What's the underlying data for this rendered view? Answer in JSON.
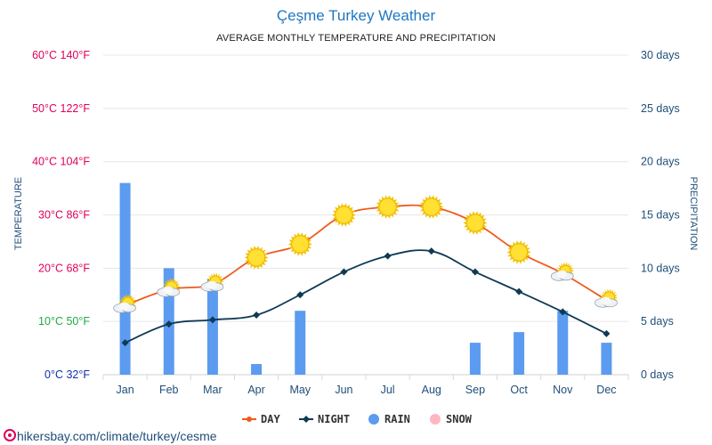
{
  "title": "Çeşme Turkey Weather",
  "subtitle": "AVERAGE MONTHLY TEMPERATURE AND PRECIPITATION",
  "left_axis_label": "TEMPERATURE",
  "right_axis_label": "PRECIPITATION",
  "source": "hikersbay.com/climate/turkey/cesme",
  "colors": {
    "day": "#f05a1c",
    "night": "#0f3a55",
    "rain": "#5b9bf0",
    "snow": "#ffb6c1",
    "temp_hot": "#e0005a",
    "temp_mild": "#22a845",
    "temp_cold": "#1030b0",
    "days_label": "#1f4e79",
    "title": "#1f77c2"
  },
  "legend": [
    {
      "key": "day",
      "label": "DAY",
      "icon": "line-marker-dot"
    },
    {
      "key": "night",
      "label": "NIGHT",
      "icon": "line-marker-diamond"
    },
    {
      "key": "rain",
      "label": "RAIN",
      "icon": "circle"
    },
    {
      "key": "snow",
      "label": "SNOW",
      "icon": "circle"
    }
  ],
  "chart_data": {
    "type": "line",
    "title": "Çeşme Turkey Weather",
    "subtitle": "AVERAGE MONTHLY TEMPERATURE AND PRECIPITATION",
    "categories": [
      "Jan",
      "Feb",
      "Mar",
      "Apr",
      "May",
      "Jun",
      "Jul",
      "Aug",
      "Sep",
      "Oct",
      "Nov",
      "Dec"
    ],
    "y_left": {
      "label": "TEMPERATURE",
      "range": [
        0,
        60
      ],
      "ticks": [
        {
          "value": 0,
          "label": "0°C 32°F"
        },
        {
          "value": 10,
          "label": "10°C 50°F"
        },
        {
          "value": 20,
          "label": "20°C 68°F"
        },
        {
          "value": 30,
          "label": "30°C 86°F"
        },
        {
          "value": 40,
          "label": "40°C 104°F"
        },
        {
          "value": 50,
          "label": "50°C 122°F"
        },
        {
          "value": 60,
          "label": "60°C 140°F"
        }
      ]
    },
    "y_right": {
      "label": "PRECIPITATION",
      "range": [
        0,
        30
      ],
      "ticks": [
        {
          "value": 0,
          "label": "0 days"
        },
        {
          "value": 5,
          "label": "5 days"
        },
        {
          "value": 10,
          "label": "10 days"
        },
        {
          "value": 15,
          "label": "15 days"
        },
        {
          "value": 20,
          "label": "20 days"
        },
        {
          "value": 25,
          "label": "25 days"
        },
        {
          "value": 30,
          "label": "30 days"
        }
      ]
    },
    "series": [
      {
        "name": "DAY",
        "axis": "left",
        "kind": "line",
        "values": [
          13,
          16,
          17,
          22,
          24.5,
          30,
          31.5,
          31.5,
          28.5,
          23,
          19,
          14
        ],
        "weather_icons": [
          "cloudy-sun-icon",
          "cloudy-sun-icon",
          "cloudy-sun-icon",
          "sun-icon",
          "sun-icon",
          "sun-icon",
          "sun-icon",
          "sun-icon",
          "sun-icon",
          "sun-icon",
          "cloudy-sun-icon",
          "cloudy-sun-icon"
        ]
      },
      {
        "name": "NIGHT",
        "axis": "left",
        "kind": "line",
        "values": [
          6,
          9.5,
          10.3,
          11.2,
          15,
          19.3,
          22.3,
          23.2,
          19.3,
          15.6,
          11.8,
          7.7
        ]
      },
      {
        "name": "RAIN",
        "axis": "right",
        "kind": "bar",
        "values": [
          18,
          10,
          9,
          1,
          6,
          0,
          0,
          0,
          3,
          4,
          6,
          3
        ]
      },
      {
        "name": "SNOW",
        "axis": "right",
        "kind": "bar",
        "values": [
          0,
          0,
          0,
          0,
          0,
          0,
          0,
          0,
          0,
          0,
          0,
          0
        ]
      }
    ],
    "grid": true,
    "legend_position": "bottom-center"
  }
}
